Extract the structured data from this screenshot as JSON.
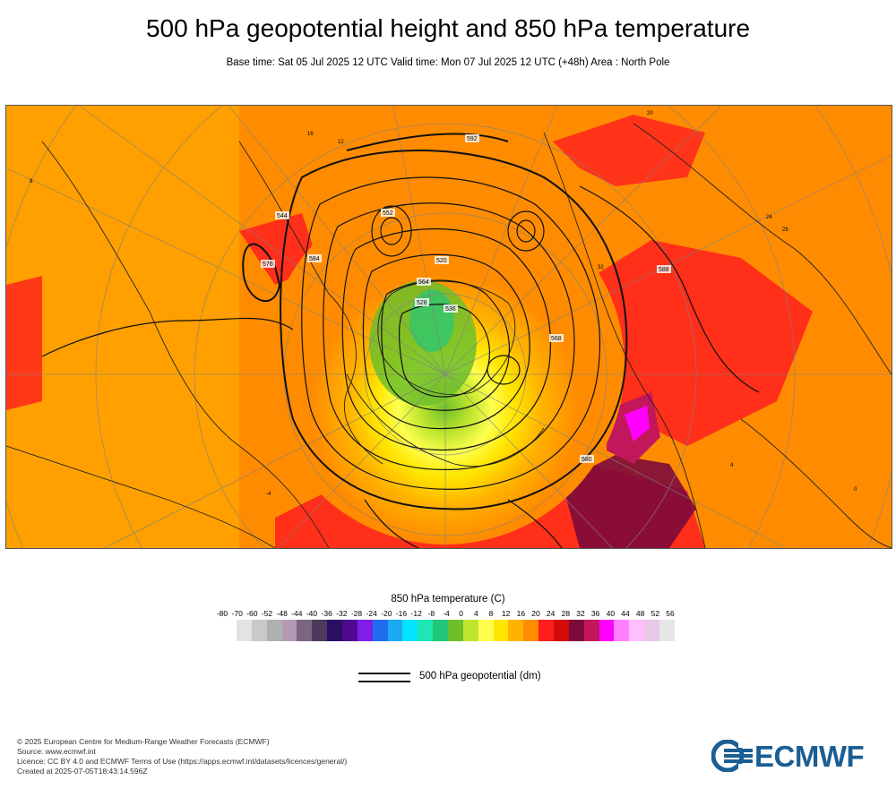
{
  "title": "500 hPa geopotential height and 850 hPa temperature",
  "subtitle": "Base time: Sat 05 Jul 2025 12 UTC Valid time: Mon 07 Jul 2025 12 UTC (+48h) Area : North Pole",
  "map": {
    "projection": "polar stereographic",
    "area": "North Pole",
    "contour_labels": [
      "592",
      "552",
      "564",
      "536",
      "528",
      "520",
      "568",
      "576",
      "584",
      "544",
      "588",
      "580"
    ],
    "temperature_labels": [
      "16",
      "12",
      "8",
      "20",
      "24",
      "28",
      "32",
      "4",
      "0",
      "-4"
    ]
  },
  "temperature_legend": {
    "title": "850 hPa temperature (C)",
    "ticks": [
      "-80",
      "-70",
      "-60",
      "-52",
      "-48",
      "-44",
      "-40",
      "-36",
      "-32",
      "-28",
      "-24",
      "-20",
      "-16",
      "-12",
      "-8",
      "-4",
      "0",
      "4",
      "8",
      "12",
      "16",
      "20",
      "24",
      "28",
      "32",
      "36",
      "40",
      "44",
      "48",
      "52",
      "56"
    ],
    "colors": [
      "#e3e3e3",
      "#c9c9c9",
      "#b0b0b0",
      "#b29bb2",
      "#7a6680",
      "#4b3a5a",
      "#2a0f63",
      "#4d0a8f",
      "#7f1ee6",
      "#1e6cf0",
      "#1ea8f0",
      "#00e5ff",
      "#1ee6b4",
      "#23c777",
      "#6fbe2c",
      "#bfe62d",
      "#ffff50",
      "#ffe600",
      "#ffb300",
      "#ff8c00",
      "#ff1e1e",
      "#d60a0a",
      "#7d0a3c",
      "#c2185b",
      "#ff00ff",
      "#ff80ff",
      "#ffbfff",
      "#e8c8e8",
      "#e6e6e6"
    ]
  },
  "geopotential_legend": {
    "label": "500 hPa geopotential (dm)"
  },
  "footer": {
    "copyright": "© 2025 European Centre for Medium-Range Weather Forecasts (ECMWF)",
    "source": "Source: www.ecmwf.int",
    "licence": "Licence: CC BY 4.0 and ECMWF Terms of Use (https://apps.ecmwf.int/datasets/licences/general/)",
    "created": "Created at 2025-07-05T18:43:14.596Z"
  },
  "logo": {
    "text": "ECMWF",
    "color": "#1a5e94"
  }
}
